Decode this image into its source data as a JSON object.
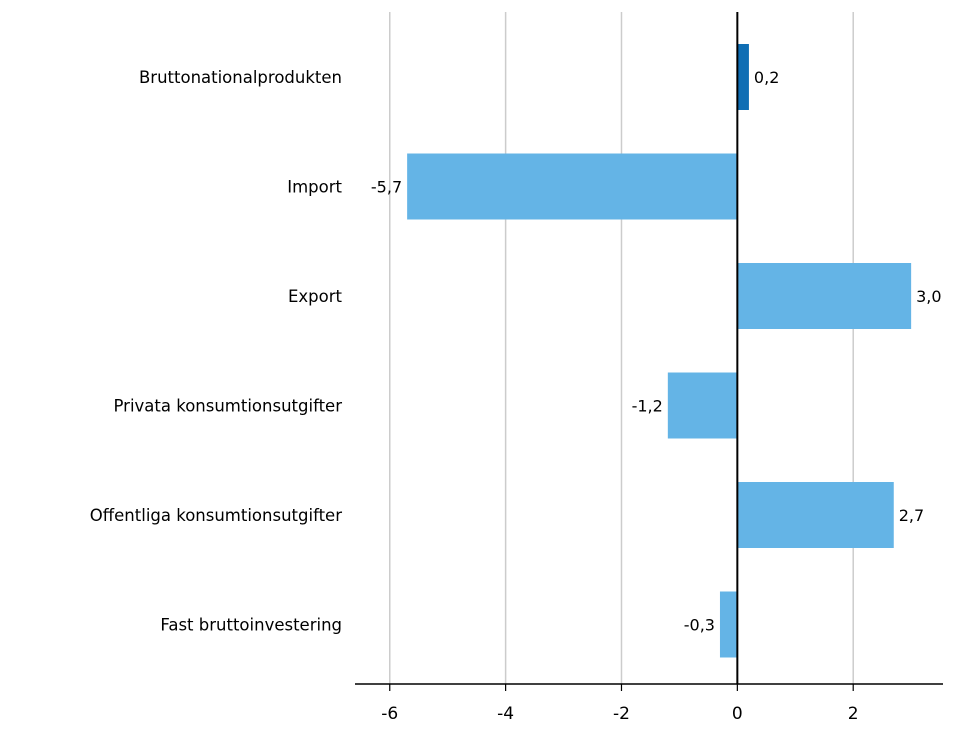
{
  "chart_data": {
    "type": "bar",
    "orientation": "horizontal",
    "title": "",
    "xlabel": "",
    "ylabel": "",
    "categories": [
      "Bruttonationalprodukten",
      "Import",
      "Export",
      "Privata konsumtionsutgifter",
      "Offentliga konsumtionsutgifter",
      "Fast bruttoinvestering"
    ],
    "values": [
      0.2,
      -5.7,
      3.0,
      -1.2,
      2.7,
      -0.3
    ],
    "value_labels": [
      "0,2",
      "-5,7",
      "3,0",
      "-1,2",
      "2,7",
      "-0,3"
    ],
    "bar_colors": [
      "#0f6eb4",
      "#64b4e6",
      "#64b4e6",
      "#64b4e6",
      "#64b4e6",
      "#64b4e6"
    ],
    "xlim": [
      -6.6,
      3.55
    ],
    "x_ticks": [
      -6,
      -4,
      -2,
      0,
      2
    ],
    "x_tick_labels": [
      "-6",
      "-4",
      "-2",
      "0",
      "2"
    ],
    "grid": true,
    "legend": "none"
  }
}
